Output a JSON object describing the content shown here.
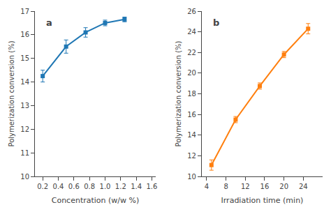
{
  "chart_data": [
    {
      "type": "line",
      "title": "a",
      "marker": "square",
      "grid": false,
      "x_label": "Concentration (w/w %)",
      "y_label": "Polymerization conversion (%)",
      "x": [
        0.2,
        0.5,
        0.75,
        1.0,
        1.25
      ],
      "values": [
        14.25,
        15.5,
        16.1,
        16.5,
        16.65
      ],
      "error": [
        0.25,
        0.28,
        0.2,
        0.12,
        0.1
      ],
      "xlim": [
        0.1,
        1.65
      ],
      "ylim": [
        10,
        17
      ],
      "xticks": [
        0.2,
        0.4,
        0.6,
        0.8,
        {
          "value": 1.0,
          "label": "1.0"
        },
        1.2,
        1.4,
        1.6
      ],
      "yticks": [
        10,
        11,
        12,
        13,
        14,
        15,
        16,
        17
      ]
    },
    {
      "type": "line",
      "title": "b",
      "marker": "square",
      "grid": false,
      "x_label": "Irradiation time (min)",
      "y_label": "Polymerization conversion (%)",
      "x": [
        5,
        10,
        15,
        20,
        25
      ],
      "values": [
        11.1,
        15.5,
        18.75,
        21.8,
        24.3
      ],
      "error": [
        0.5,
        0.3,
        0.3,
        0.3,
        0.5
      ],
      "xlim": [
        3,
        28
      ],
      "ylim": [
        10,
        26
      ],
      "xticks": [
        4,
        8,
        12,
        16,
        20,
        24
      ],
      "yticks": [
        10,
        12,
        14,
        16,
        18,
        20,
        22,
        24,
        26
      ]
    }
  ]
}
